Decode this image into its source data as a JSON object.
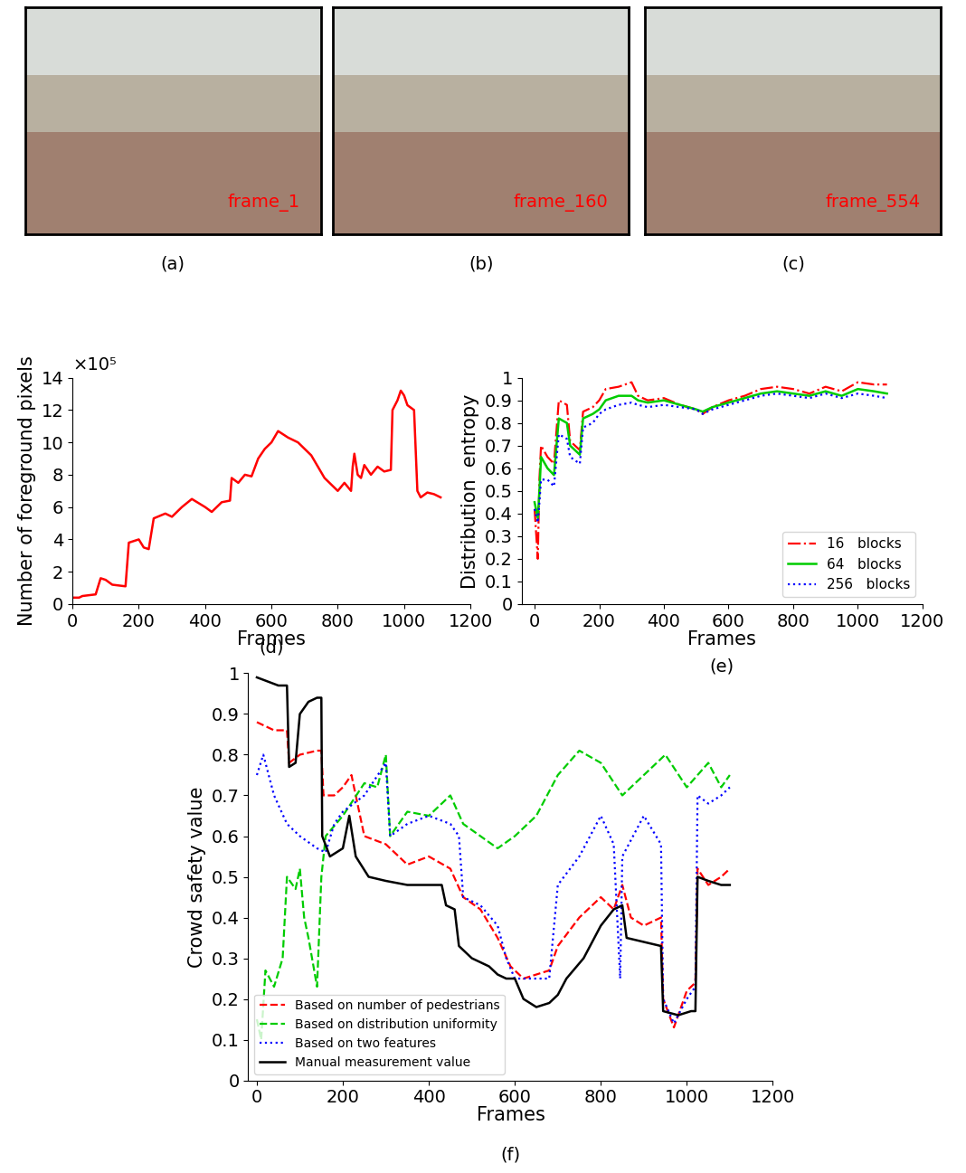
{
  "images": [
    {
      "label": "frame_1",
      "caption": "(a)",
      "color": "#ff0000"
    },
    {
      "label": "frame_160",
      "caption": "(b)",
      "color": "#ff0000"
    },
    {
      "label": "frame_554",
      "caption": "(c)",
      "color": "#ff0000"
    }
  ],
  "chart_data": [
    {
      "type": "line",
      "caption": "(d)",
      "xlabel": "Frames",
      "ylabel": "Number of foreground pixels",
      "annotations": [
        "×10⁵"
      ],
      "xlim": [
        0,
        1200
      ],
      "xticks": [
        0,
        200,
        400,
        600,
        800,
        1000,
        1200
      ],
      "ylim": [
        0,
        14
      ],
      "yticks": [
        0,
        2,
        4,
        6,
        8,
        10,
        12,
        14
      ],
      "x": [
        0,
        20,
        30,
        70,
        85,
        100,
        120,
        160,
        170,
        200,
        215,
        230,
        245,
        280,
        300,
        330,
        360,
        400,
        420,
        450,
        475,
        480,
        500,
        520,
        540,
        560,
        580,
        600,
        620,
        650,
        680,
        700,
        720,
        740,
        760,
        780,
        800,
        820,
        840,
        845,
        850,
        860,
        870,
        880,
        900,
        920,
        940,
        960,
        965,
        980,
        990,
        1000,
        1010,
        1030,
        1040,
        1050,
        1070,
        1090,
        1110
      ],
      "series": [
        {
          "color": "#ff0000",
          "line_style": "solid",
          "values": [
            0.4,
            0.4,
            0.5,
            0.6,
            1.6,
            1.5,
            1.2,
            1.1,
            3.8,
            4.0,
            3.5,
            3.4,
            5.3,
            5.6,
            5.4,
            6.0,
            6.5,
            6.0,
            5.7,
            6.3,
            6.4,
            7.8,
            7.5,
            8.0,
            7.9,
            9.0,
            9.6,
            10.0,
            10.7,
            10.3,
            10.0,
            9.6,
            9.2,
            8.5,
            7.8,
            7.4,
            7.0,
            7.5,
            7.0,
            8.5,
            9.3,
            8.0,
            7.8,
            8.6,
            8.0,
            8.5,
            8.2,
            8.3,
            12.0,
            12.6,
            13.2,
            12.9,
            12.3,
            12.0,
            7.0,
            6.6,
            6.9,
            6.8,
            6.6
          ]
        }
      ]
    },
    {
      "type": "line",
      "caption": "(e)",
      "xlabel": "Frames",
      "ylabel": "Distribution  entropy",
      "legend": "lower right",
      "xlim": [
        -40,
        1200
      ],
      "xticks": [
        0,
        200,
        400,
        600,
        800,
        1000,
        1200
      ],
      "ylim": [
        0,
        1
      ],
      "yticks": [
        0,
        0.1,
        0.2,
        0.3,
        0.4,
        0.5,
        0.6,
        0.7,
        0.8,
        0.9,
        1
      ],
      "x": [
        0,
        10,
        15,
        20,
        40,
        60,
        75,
        100,
        110,
        140,
        150,
        180,
        200,
        220,
        260,
        300,
        320,
        350,
        400,
        450,
        500,
        520,
        550,
        600,
        650,
        700,
        750,
        800,
        850,
        900,
        950,
        1000,
        1050,
        1090
      ],
      "series": [
        {
          "name": "16   blocks",
          "color": "#ff0000",
          "line_style": "dashdot",
          "values": [
            0.42,
            0.2,
            0.55,
            0.7,
            0.65,
            0.62,
            0.9,
            0.88,
            0.72,
            0.68,
            0.85,
            0.87,
            0.9,
            0.95,
            0.96,
            0.98,
            0.92,
            0.9,
            0.91,
            0.88,
            0.86,
            0.84,
            0.87,
            0.9,
            0.92,
            0.95,
            0.96,
            0.95,
            0.93,
            0.96,
            0.94,
            0.98,
            0.97,
            0.97
          ]
        },
        {
          "name": "64   blocks",
          "color": "#00cc00",
          "line_style": "solid",
          "values": [
            0.45,
            0.38,
            0.5,
            0.65,
            0.6,
            0.57,
            0.82,
            0.8,
            0.7,
            0.66,
            0.82,
            0.84,
            0.86,
            0.9,
            0.92,
            0.92,
            0.9,
            0.89,
            0.9,
            0.88,
            0.86,
            0.85,
            0.87,
            0.89,
            0.91,
            0.93,
            0.94,
            0.93,
            0.92,
            0.94,
            0.92,
            0.95,
            0.94,
            0.93
          ]
        },
        {
          "name": "256   blocks",
          "color": "#0000ff",
          "line_style": "dotted",
          "values": [
            0.42,
            0.36,
            0.45,
            0.55,
            0.55,
            0.52,
            0.75,
            0.73,
            0.65,
            0.62,
            0.78,
            0.8,
            0.84,
            0.86,
            0.88,
            0.89,
            0.88,
            0.87,
            0.88,
            0.87,
            0.86,
            0.84,
            0.86,
            0.88,
            0.9,
            0.92,
            0.93,
            0.92,
            0.91,
            0.93,
            0.91,
            0.93,
            0.92,
            0.91
          ]
        }
      ]
    },
    {
      "type": "line",
      "caption": "(f)",
      "xlabel": "Frames",
      "ylabel": "Crowd safety value",
      "legend": "lower left",
      "xlim": [
        -20,
        1200
      ],
      "xticks": [
        0,
        200,
        400,
        600,
        800,
        1000,
        1200
      ],
      "ylim": [
        0,
        1
      ],
      "yticks": [
        0,
        0.1,
        0.2,
        0.3,
        0.4,
        0.5,
        0.6,
        0.7,
        0.8,
        0.9,
        1
      ],
      "series": [
        {
          "name": "Based on number of pedestrians",
          "color": "#ff0000",
          "line_style": "dashed",
          "x": [
            0,
            40,
            70,
            75,
            100,
            140,
            150,
            155,
            180,
            200,
            220,
            250,
            300,
            350,
            400,
            450,
            480,
            520,
            560,
            590,
            620,
            680,
            700,
            750,
            800,
            830,
            850,
            870,
            900,
            940,
            945,
            970,
            1000,
            1020,
            1025,
            1050,
            1080,
            1100
          ],
          "values": [
            0.88,
            0.86,
            0.86,
            0.78,
            0.8,
            0.81,
            0.81,
            0.7,
            0.7,
            0.72,
            0.75,
            0.6,
            0.58,
            0.53,
            0.55,
            0.52,
            0.45,
            0.42,
            0.35,
            0.28,
            0.25,
            0.27,
            0.33,
            0.4,
            0.45,
            0.42,
            0.48,
            0.4,
            0.38,
            0.4,
            0.2,
            0.13,
            0.22,
            0.24,
            0.52,
            0.48,
            0.5,
            0.52
          ]
        },
        {
          "name": "Based on distribution uniformity",
          "color": "#00cc00",
          "line_style": "dashed",
          "x": [
            0,
            10,
            20,
            40,
            60,
            70,
            90,
            100,
            110,
            120,
            140,
            150,
            160,
            200,
            250,
            280,
            300,
            310,
            350,
            400,
            450,
            480,
            520,
            560,
            600,
            650,
            700,
            750,
            800,
            850,
            900,
            950,
            1000,
            1050,
            1080,
            1100
          ],
          "values": [
            0.15,
            0.1,
            0.27,
            0.23,
            0.3,
            0.5,
            0.47,
            0.52,
            0.4,
            0.35,
            0.23,
            0.5,
            0.6,
            0.65,
            0.73,
            0.72,
            0.8,
            0.6,
            0.66,
            0.65,
            0.7,
            0.63,
            0.6,
            0.57,
            0.6,
            0.65,
            0.75,
            0.81,
            0.78,
            0.7,
            0.75,
            0.8,
            0.72,
            0.78,
            0.72,
            0.75
          ]
        },
        {
          "name": "Based on two features",
          "color": "#0000ff",
          "line_style": "dotted",
          "x": [
            0,
            15,
            40,
            70,
            100,
            140,
            160,
            180,
            200,
            250,
            300,
            310,
            350,
            400,
            450,
            470,
            480,
            520,
            560,
            580,
            600,
            640,
            680,
            700,
            750,
            800,
            830,
            845,
            850,
            900,
            940,
            945,
            970,
            1000,
            1020,
            1025,
            1050,
            1080,
            1100
          ],
          "values": [
            0.75,
            0.8,
            0.7,
            0.63,
            0.6,
            0.57,
            0.56,
            0.63,
            0.66,
            0.7,
            0.78,
            0.6,
            0.63,
            0.65,
            0.63,
            0.6,
            0.45,
            0.43,
            0.38,
            0.3,
            0.25,
            0.25,
            0.25,
            0.48,
            0.55,
            0.65,
            0.58,
            0.25,
            0.55,
            0.65,
            0.58,
            0.2,
            0.14,
            0.2,
            0.23,
            0.7,
            0.68,
            0.7,
            0.72
          ]
        },
        {
          "name": "Manual measurement value",
          "color": "#000000",
          "line_style": "solid",
          "x": [
            0,
            50,
            70,
            75,
            90,
            100,
            120,
            140,
            150,
            152,
            170,
            200,
            215,
            230,
            260,
            300,
            350,
            400,
            430,
            440,
            460,
            470,
            500,
            540,
            560,
            580,
            600,
            620,
            650,
            680,
            700,
            720,
            760,
            800,
            830,
            850,
            860,
            900,
            940,
            945,
            980,
            1010,
            1020,
            1025,
            1050,
            1080,
            1100
          ],
          "values": [
            0.99,
            0.97,
            0.97,
            0.77,
            0.78,
            0.9,
            0.93,
            0.94,
            0.94,
            0.6,
            0.55,
            0.57,
            0.65,
            0.55,
            0.5,
            0.49,
            0.48,
            0.48,
            0.48,
            0.43,
            0.42,
            0.33,
            0.3,
            0.28,
            0.26,
            0.25,
            0.25,
            0.2,
            0.18,
            0.19,
            0.21,
            0.25,
            0.3,
            0.38,
            0.42,
            0.43,
            0.35,
            0.34,
            0.33,
            0.17,
            0.16,
            0.17,
            0.17,
            0.5,
            0.49,
            0.48,
            0.48
          ]
        }
      ]
    }
  ]
}
